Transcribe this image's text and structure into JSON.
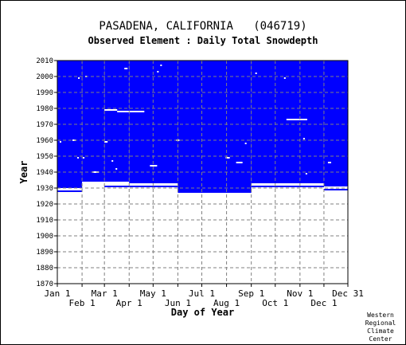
{
  "chart_data": {
    "type": "heatmap",
    "title": "PASADENA, CALIFORNIA   (046719)",
    "subtitle": "Observed Element : Daily Total Snowdepth",
    "xlabel": "Day of Year",
    "ylabel": "Year",
    "xlim": [
      1,
      365
    ],
    "ylim": [
      1870,
      2010
    ],
    "y_ticks": [
      1870,
      1880,
      1890,
      1900,
      1910,
      1920,
      1930,
      1940,
      1950,
      1960,
      1970,
      1980,
      1990,
      2000,
      2010
    ],
    "x_ticks_upper": [
      {
        "label": "Jan 1",
        "day": 1
      },
      {
        "label": "Mar 1",
        "day": 60
      },
      {
        "label": "May 1",
        "day": 121
      },
      {
        "label": "Jul 1",
        "day": 182
      },
      {
        "label": "Sep 1",
        "day": 244
      },
      {
        "label": "Nov 1",
        "day": 305
      },
      {
        "label": "Dec 31",
        "day": 365
      }
    ],
    "x_ticks_lower": [
      {
        "label": "Feb 1",
        "day": 32
      },
      {
        "label": "Apr 1",
        "day": 91
      },
      {
        "label": "Jun 1",
        "day": 152
      },
      {
        "label": "Aug 1",
        "day": 213
      },
      {
        "label": "Oct 1",
        "day": 274
      },
      {
        "label": "Dec 1",
        "day": 335
      }
    ],
    "grid": true,
    "colors": {
      "data_present": "#0000ff",
      "missing": "#ffffff",
      "grid": "#808080"
    },
    "data_blocks": [
      {
        "day_start": 1,
        "day_end": 32,
        "year_start": 1930,
        "year_end": 2010
      },
      {
        "day_start": 32,
        "day_end": 60,
        "year_start": 1934,
        "year_end": 2010
      },
      {
        "day_start": 60,
        "day_end": 91,
        "year_start": 1934,
        "year_end": 2010
      },
      {
        "day_start": 91,
        "day_end": 152,
        "year_start": 1933,
        "year_end": 2010
      },
      {
        "day_start": 152,
        "day_end": 244,
        "year_start": 1927,
        "year_end": 2010
      },
      {
        "day_start": 244,
        "day_end": 335,
        "year_start": 1933,
        "year_end": 2010
      },
      {
        "day_start": 335,
        "day_end": 365,
        "year_start": 1931,
        "year_end": 2010
      }
    ],
    "extra_data_segments": [
      {
        "day_start": 1,
        "day_end": 32,
        "year": 1928
      },
      {
        "day_start": 60,
        "day_end": 91,
        "year": 1931
      },
      {
        "day_start": 91,
        "day_end": 152,
        "year": 1931
      },
      {
        "day_start": 244,
        "day_end": 335,
        "year": 1931
      },
      {
        "day_start": 335,
        "day_end": 365,
        "year": 1929
      }
    ],
    "missing_segments": [
      {
        "day_start": 60,
        "day_end": 76,
        "year": 1979
      },
      {
        "day_start": 76,
        "day_end": 91,
        "year": 1978
      },
      {
        "day_start": 91,
        "day_end": 110,
        "year": 1978
      },
      {
        "day_start": 288,
        "day_end": 314,
        "year": 1973
      },
      {
        "day_start": 60,
        "day_end": 64,
        "year": 1959
      },
      {
        "day_start": 45,
        "day_end": 53,
        "year": 1940
      },
      {
        "day_start": 117,
        "day_end": 126,
        "year": 1944
      },
      {
        "day_start": 225,
        "day_end": 233,
        "year": 1946
      },
      {
        "day_start": 340,
        "day_end": 344,
        "year": 1946
      },
      {
        "day_start": 20,
        "day_end": 24,
        "year": 1960
      },
      {
        "day_start": 150,
        "day_end": 154,
        "year": 1960
      },
      {
        "day_start": 212,
        "day_end": 217,
        "year": 1949
      },
      {
        "day_start": 85,
        "day_end": 89,
        "year": 2005
      },
      {
        "day_start": 4,
        "day_end": 5,
        "year": 1959
      },
      {
        "day_start": 26,
        "day_end": 27,
        "year": 1949
      },
      {
        "day_start": 33,
        "day_end": 34,
        "year": 1949
      },
      {
        "day_start": 36,
        "day_end": 37,
        "year": 2000
      },
      {
        "day_start": 27,
        "day_end": 28,
        "year": 1999
      },
      {
        "day_start": 69,
        "day_end": 70,
        "year": 1947
      },
      {
        "day_start": 74,
        "day_end": 75,
        "year": 1942
      },
      {
        "day_start": 70,
        "day_end": 71,
        "year": 1933
      },
      {
        "day_start": 236,
        "day_end": 237,
        "year": 1958
      },
      {
        "day_start": 249,
        "day_end": 250,
        "year": 2002
      },
      {
        "day_start": 285,
        "day_end": 286,
        "year": 1999
      },
      {
        "day_start": 309,
        "day_end": 310,
        "year": 1961
      },
      {
        "day_start": 312,
        "day_end": 313,
        "year": 1939
      },
      {
        "day_start": 126,
        "day_end": 127,
        "year": 2003
      },
      {
        "day_start": 130,
        "day_end": 131,
        "year": 2007
      }
    ]
  },
  "credit": [
    "Western",
    "Regional",
    "Climate",
    "Center"
  ]
}
